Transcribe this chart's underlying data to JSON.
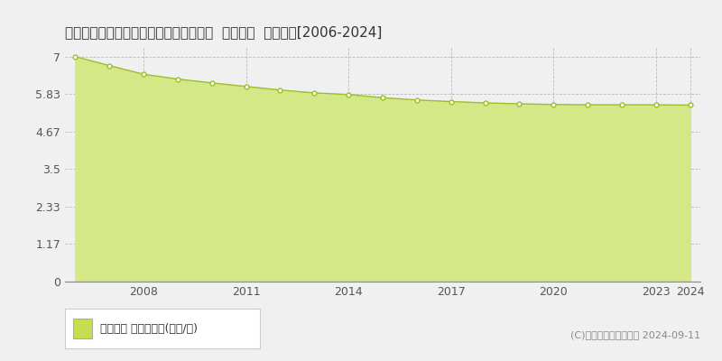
{
  "title": "長野県安曇野市明科七貴５８４２番２外  地価公示  地価推移[2006-2024]",
  "years": [
    2006,
    2007,
    2008,
    2009,
    2010,
    2011,
    2012,
    2013,
    2014,
    2015,
    2016,
    2017,
    2018,
    2019,
    2020,
    2021,
    2022,
    2023,
    2024
  ],
  "values": [
    7.0,
    6.72,
    6.45,
    6.3,
    6.18,
    6.07,
    5.96,
    5.87,
    5.82,
    5.72,
    5.65,
    5.6,
    5.56,
    5.53,
    5.51,
    5.5,
    5.5,
    5.5,
    5.49
  ],
  "line_color": "#9bbf2a",
  "fill_color": "#d4e888",
  "marker_face": "#ffffff",
  "marker_edge": "#9bbf2a",
  "background_color": "#f0f0f0",
  "plot_bg_color": "#f0f0f0",
  "grid_color": "#bbbbbb",
  "yticks": [
    0,
    1.17,
    2.33,
    3.5,
    4.67,
    5.83,
    7
  ],
  "ytick_labels": [
    "0",
    "1.17",
    "2.33",
    "3.5",
    "4.67",
    "5.83",
    "7"
  ],
  "xtick_years": [
    2008,
    2011,
    2014,
    2017,
    2020,
    2023,
    2024
  ],
  "ylim_max": 7.3,
  "legend_label": "地価公示 平均坪単価(万円/坪)",
  "legend_color": "#c8dc50",
  "copyright_text": "(C)土地価格ドットコム 2024-09-11",
  "title_fontsize": 11,
  "tick_fontsize": 9,
  "legend_fontsize": 9,
  "copyright_fontsize": 8
}
